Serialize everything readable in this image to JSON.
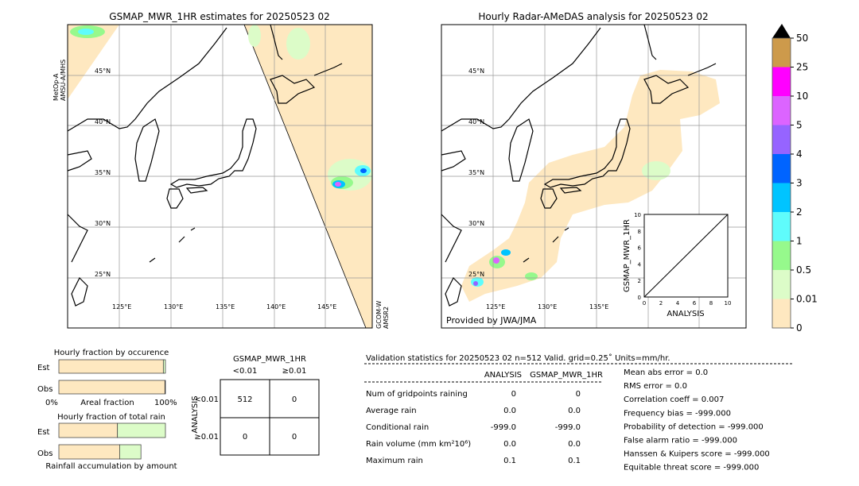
{
  "left_map": {
    "title": "GSMAP_MWR_1HR estimates for 20250523 02",
    "sat_left": [
      "MetOp-A",
      "AMSU-A/MHS"
    ],
    "sat_right": [
      "GCOM-W",
      "AMSR2"
    ]
  },
  "right_map": {
    "title": "Hourly Radar-AMeDAS analysis for 20250523 02",
    "credit": "Provided by JWA/JMA"
  },
  "lat_labels": [
    "45°N",
    "40°N",
    "35°N",
    "30°N",
    "25°N"
  ],
  "lon_labels": [
    "125°E",
    "130°E",
    "135°E",
    "140°E",
    "145°E"
  ],
  "colorbar": {
    "ticks": [
      "0",
      "0.01",
      "0.5",
      "1",
      "2",
      "3",
      "4",
      "5",
      "10",
      "25",
      "50"
    ],
    "colors": [
      "#fee8c0",
      "#dcfcc8",
      "#96f98c",
      "#5ffcfc",
      "#00c4ff",
      "#0064ff",
      "#9664ff",
      "#dc64ff",
      "#ff00ff",
      "#cd9a4b"
    ],
    "extend_color": "#000000"
  },
  "inset": {
    "xlabel": "ANALYSIS",
    "ylabel": "GSMAP_MWR_1HR",
    "ticks": [
      "0",
      "2",
      "4",
      "6",
      "8",
      "10"
    ],
    "yticks": [
      "0",
      "2",
      "4",
      "6",
      "8",
      "10"
    ]
  },
  "chart_data": [
    {
      "type": "bar",
      "title": "Hourly fraction by occurence",
      "categories": [
        "Est",
        "Obs"
      ],
      "xlabel": "Areal fraction",
      "xtick_labels": [
        "0%",
        "100%"
      ],
      "series": [
        {
          "values": [
            98,
            99.5
          ],
          "color": "#fee8c0"
        },
        {
          "values": [
            2,
            0.5
          ],
          "color": "#dcfcc8"
        }
      ]
    },
    {
      "type": "bar",
      "title": "Hourly fraction of total rain",
      "categories": [
        "Est",
        "Obs"
      ],
      "xlabel": "Rainfall accumulation by amount",
      "series": [
        {
          "values": [
            55,
            57
          ],
          "color": "#fee8c0"
        },
        {
          "values": [
            45,
            20
          ],
          "color": "#dcfcc8"
        }
      ]
    },
    {
      "type": "table",
      "title": "GSMAP_MWR_1HR",
      "col_labels": [
        "<0.01",
        "≥0.01"
      ],
      "row_title": "ANALYSIS",
      "row_labels": [
        "<0.01",
        "≥0.01"
      ],
      "cells": [
        [
          "512",
          "0"
        ],
        [
          "0",
          "0"
        ]
      ]
    }
  ],
  "stats": {
    "header": "Validation statistics for 20250523 02  n=512 Valid. grid=0.25˚ Units=mm/hr.",
    "col_headers": [
      "ANALYSIS",
      "GSMAP_MWR_1HR"
    ],
    "rows": [
      {
        "label": "Num of gridpoints raining",
        "a": "0",
        "b": "0"
      },
      {
        "label": "Average rain",
        "a": "0.0",
        "b": "0.0"
      },
      {
        "label": "Conditional rain",
        "a": "-999.0",
        "b": "-999.0"
      },
      {
        "label": "Rain volume (mm km²10⁶)",
        "a": "0.0",
        "b": "0.0"
      },
      {
        "label": "Maximum rain",
        "a": "0.1",
        "b": "0.1"
      }
    ],
    "scores": [
      "Mean abs error =    0.0",
      "RMS error =    0.0",
      "Correlation coeff =  0.007",
      "Frequency bias = -999.000",
      "Probability of detection = -999.000",
      "False alarm ratio = -999.000",
      "Hanssen & Kuipers score = -999.000",
      "Equitable threat score = -999.000"
    ]
  }
}
